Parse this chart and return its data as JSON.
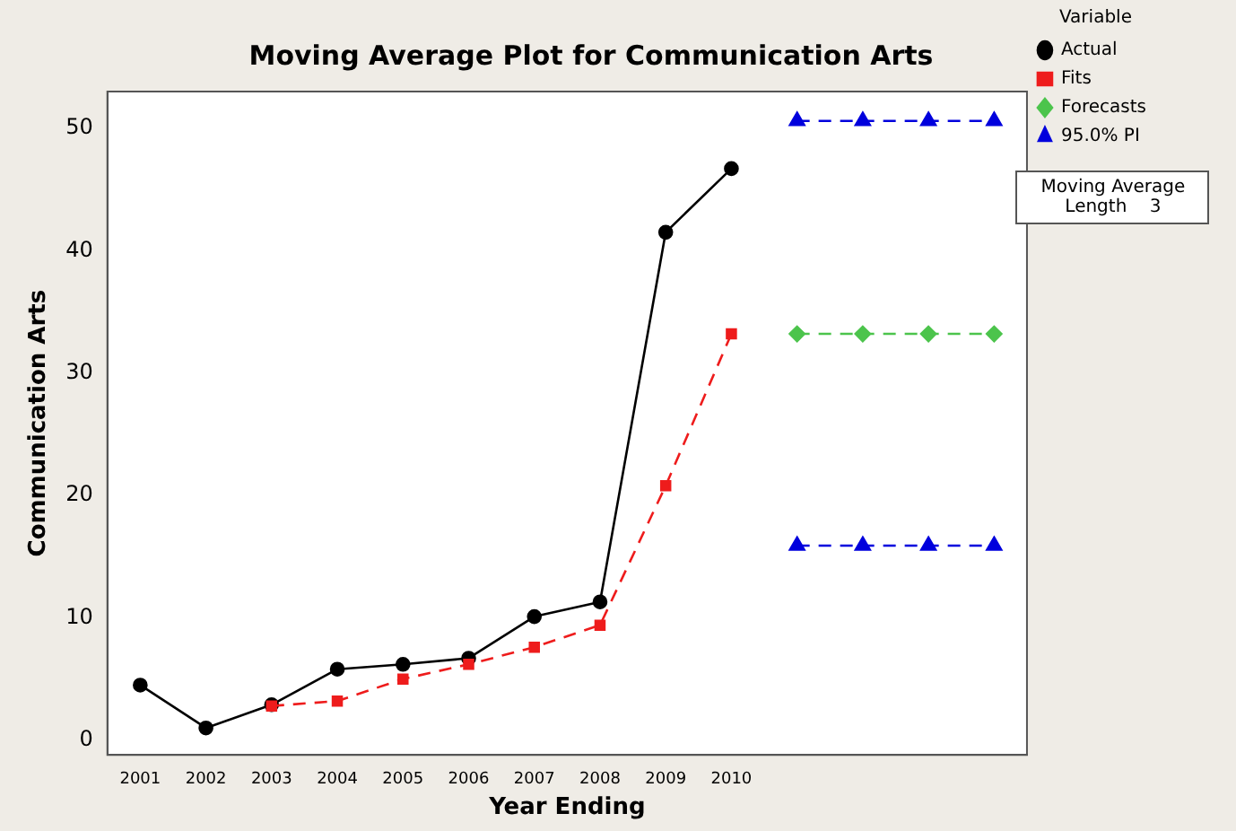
{
  "chart_data": {
    "type": "line",
    "title": "Moving Average Plot for Communication Arts",
    "xlabel": "Year Ending",
    "ylabel": "Communication Arts",
    "legend_title": "Variable",
    "legend": "right",
    "grid": false,
    "categories": [
      "2001",
      "2002",
      "2003",
      "2004",
      "2005",
      "2006",
      "2007",
      "2008",
      "2009",
      "2010",
      null,
      null,
      null,
      null
    ],
    "ylim": [
      -1.2,
      53
    ],
    "yticks": [
      0,
      10,
      20,
      30,
      40,
      50
    ],
    "series": [
      {
        "name": "Actual",
        "color": "#000000",
        "marker": "circle",
        "line_style": "solid",
        "values": [
          4.5,
          1.0,
          2.9,
          5.8,
          6.2,
          6.7,
          10.1,
          11.3,
          41.5,
          46.7,
          null,
          null,
          null,
          null
        ]
      },
      {
        "name": "Fits",
        "color": "#ee1c1c",
        "marker": "square",
        "line_style": "dashed",
        "values": [
          null,
          null,
          2.8,
          3.2,
          5.0,
          6.2,
          7.6,
          9.4,
          20.8,
          33.2,
          null,
          null,
          null,
          null
        ]
      },
      {
        "name": "Forecasts",
        "color": "#4cc44c",
        "marker": "diamond",
        "line_style": "dashed",
        "values": [
          null,
          null,
          null,
          null,
          null,
          null,
          null,
          null,
          null,
          null,
          33.2,
          33.2,
          33.2,
          33.2
        ]
      },
      {
        "name": "95.0% PI",
        "color": "#0000dd",
        "marker": "triangle",
        "line_style": "dashed",
        "values": [
          null,
          null,
          null,
          null,
          null,
          null,
          null,
          null,
          null,
          null,
          50.6,
          50.6,
          50.6,
          50.6
        ]
      },
      {
        "color": "#0000dd",
        "marker": "triangle",
        "line_style": "dashed",
        "values": [
          null,
          null,
          null,
          null,
          null,
          null,
          null,
          null,
          null,
          null,
          15.9,
          15.9,
          15.9,
          15.9
        ]
      }
    ],
    "annotations": [
      "Moving Average\nLength    3"
    ]
  }
}
